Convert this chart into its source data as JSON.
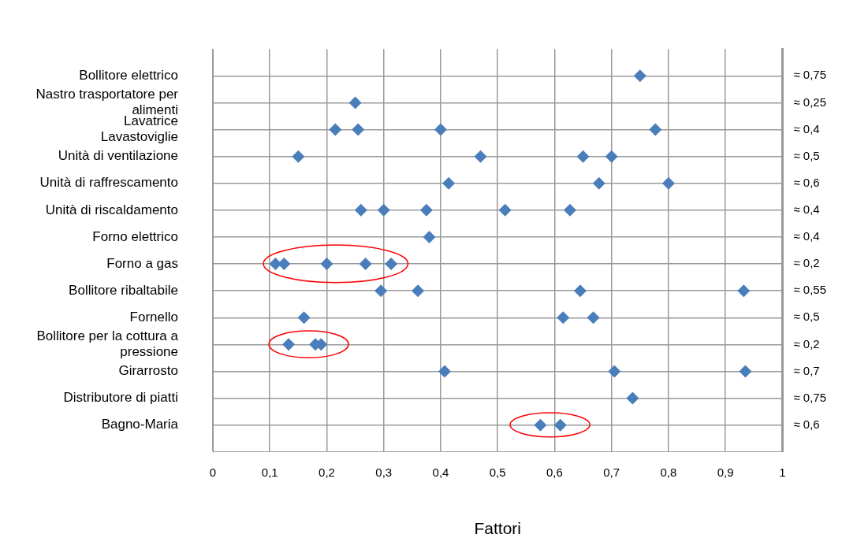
{
  "chart_data": {
    "type": "scatter",
    "orientation": "horizontal",
    "xlabel": "Fattori",
    "marker": "diamond",
    "grid": true,
    "legend": false,
    "categories": [
      "Bollitore elettrico",
      "Nastro trasportatore per alimenti",
      "Lavatrice\nLavastoviglie",
      "Unità di ventilazione",
      "Unità di raffrescamento",
      "Unità di riscaldamento",
      "Forno elettrico",
      "Forno a gas",
      "Bollitore ribaltabile",
      "Fornello",
      "Bollitore per la cottura a pressione",
      "Girarrosto",
      "Distributore di piatti",
      "Bagno-Maria"
    ],
    "y2_categories": [
      "≈ 0,75",
      "≈ 0,25",
      "≈ 0,4",
      "≈ 0,5",
      "≈ 0,6",
      "≈ 0,4",
      "≈ 0,4",
      "≈ 0,2",
      "≈ 0,55",
      "≈ 0,5",
      "≈ 0,2",
      "≈ 0,7",
      "≈ 0,75",
      "≈ 0,6"
    ],
    "xlim": [
      0,
      1
    ],
    "xticks": [
      0,
      {
        "value": 0.1,
        "label": "0,1"
      },
      {
        "value": 0.2,
        "label": "0,2"
      },
      {
        "value": 0.3,
        "label": "0,3"
      },
      {
        "value": 0.4,
        "label": "0,4"
      },
      {
        "value": 0.5,
        "label": "0,5"
      },
      {
        "value": 0.6,
        "label": "0,6"
      },
      {
        "value": 0.7,
        "label": "0,7"
      },
      {
        "value": 0.8,
        "label": "0,8"
      },
      {
        "value": 0.9,
        "label": "0,9"
      },
      1
    ],
    "series": [
      {
        "color": "#4a7ebb",
        "values": [
          0.75,
          0.25,
          0.215,
          0.15,
          0.414,
          0.26,
          0.38,
          0.11,
          0.295,
          0.16,
          0.133,
          0.407,
          0.737,
          0.575
        ]
      },
      {
        "color": "#4a7ebb",
        "values": [
          null,
          null,
          0.255,
          0.47,
          0.678,
          0.3,
          null,
          0.125,
          0.36,
          0.615,
          0.18,
          0.705,
          null,
          0.61
        ]
      },
      {
        "color": "#4a7ebb",
        "values": [
          null,
          null,
          0.4,
          0.65,
          0.8,
          0.375,
          null,
          0.2,
          0.645,
          0.668,
          0.19,
          0.935,
          null,
          null
        ]
      },
      {
        "color": "#4a7ebb",
        "values": [
          null,
          null,
          0.777,
          0.7,
          null,
          0.513,
          null,
          0.268,
          0.932,
          null,
          null,
          null,
          null,
          null
        ]
      },
      {
        "color": "#4a7ebb",
        "values": [
          null,
          null,
          null,
          null,
          null,
          0.627,
          null,
          0.313,
          null,
          null,
          null,
          null,
          null,
          null
        ]
      }
    ]
  }
}
